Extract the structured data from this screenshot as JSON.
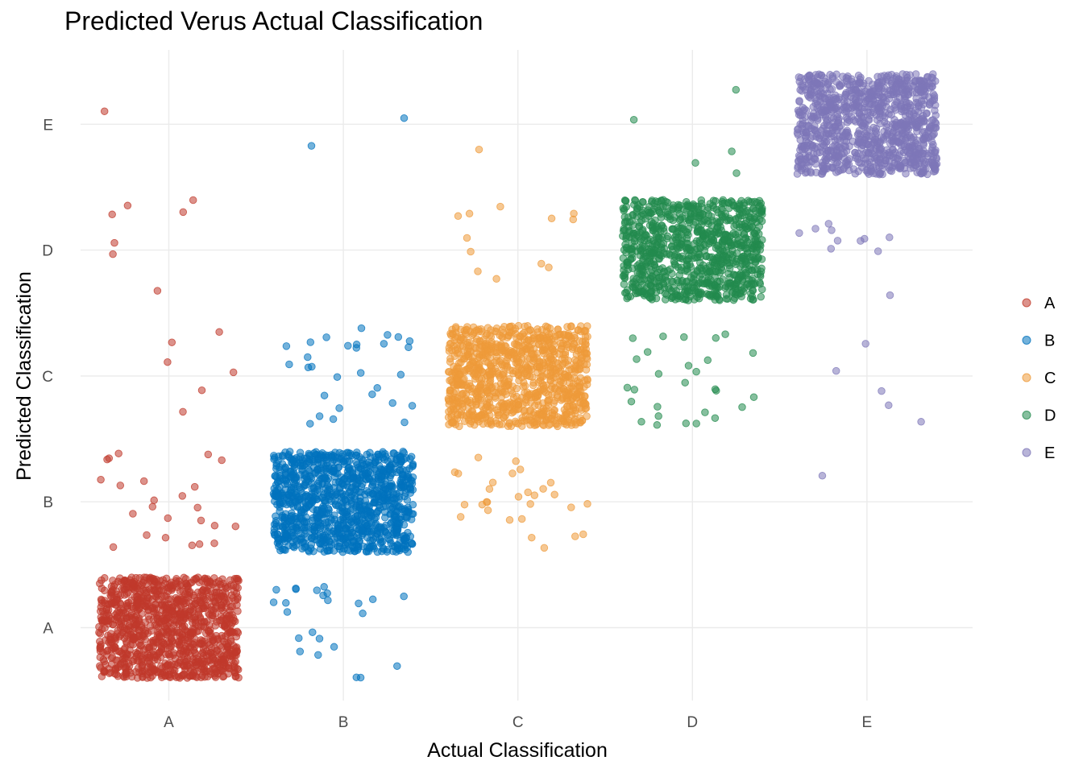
{
  "chart_data": {
    "type": "scatter",
    "title": "Predicted Verus Actual Classification",
    "xlabel": "Actual Classification",
    "ylabel": "Predicted Classification",
    "categories": [
      "A",
      "B",
      "C",
      "D",
      "E"
    ],
    "jitter": 0.4,
    "grid": true,
    "legend": {
      "position": "right",
      "entries": [
        "A",
        "B",
        "C",
        "D",
        "E"
      ]
    },
    "colors": {
      "A": "#C0392B",
      "B": "#0072BD",
      "C": "#EE9A3A",
      "D": "#238B4E",
      "E": "#7E77B8"
    },
    "confusion_counts": [
      {
        "actual": "A",
        "predicted": {
          "A": 1100,
          "B": 24,
          "C": 6,
          "D": 7,
          "E": 1
        }
      },
      {
        "actual": "B",
        "predicted": {
          "A": 24,
          "B": 1100,
          "C": 29,
          "D": 0,
          "E": 2
        }
      },
      {
        "actual": "C",
        "predicted": {
          "A": 0,
          "B": 29,
          "C": 1000,
          "D": 12,
          "E": 1
        }
      },
      {
        "actual": "D",
        "predicted": {
          "A": 0,
          "B": 0,
          "C": 28,
          "D": 950,
          "E": 5
        }
      },
      {
        "actual": "E",
        "predicted": {
          "A": 0,
          "B": 1,
          "C": 5,
          "D": 11,
          "E": 1050
        }
      }
    ]
  }
}
